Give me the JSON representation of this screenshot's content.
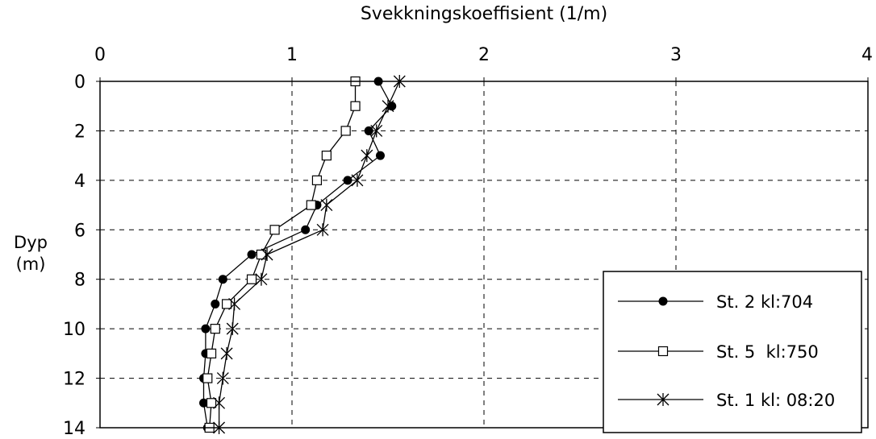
{
  "chart_data": {
    "type": "line",
    "orientation": "depth-profile",
    "title": "Svekkningskoeffisient (1/m)",
    "xlabel": "Svekkningskoeffisient (1/m)",
    "ylabel": "Dyp (m)",
    "ylabel_lines": [
      "Dyp",
      "(m)"
    ],
    "xlim": [
      0,
      4
    ],
    "ylim": [
      0,
      14
    ],
    "y_inverted": true,
    "x_axis_position": "top",
    "x_ticks": [
      "0",
      "1",
      "2",
      "3",
      "4"
    ],
    "y_ticks": [
      "0",
      "2",
      "4",
      "6",
      "8",
      "10",
      "12",
      "14"
    ],
    "grid": true,
    "legend_position": "bottom-right",
    "series": [
      {
        "name": "St. 2 kl:704",
        "marker": "filled-circle",
        "depth": [
          0,
          1,
          2,
          3,
          4,
          5,
          6,
          7,
          8,
          9,
          10,
          11,
          12,
          13,
          14
        ],
        "values": [
          1.45,
          1.52,
          1.4,
          1.46,
          1.29,
          1.13,
          1.07,
          0.79,
          0.64,
          0.6,
          0.55,
          0.55,
          0.54,
          0.54,
          0.56
        ]
      },
      {
        "name": "St. 5  kl:750",
        "marker": "open-square",
        "depth": [
          0,
          1,
          2,
          3,
          4,
          5,
          6,
          7,
          8,
          9,
          10,
          11,
          12,
          13,
          14
        ],
        "values": [
          1.33,
          1.33,
          1.28,
          1.18,
          1.13,
          1.1,
          0.91,
          0.84,
          0.79,
          0.66,
          0.6,
          0.58,
          0.56,
          0.58,
          0.57
        ]
      },
      {
        "name": "St. 1 kl: 08:20",
        "marker": "asterisk",
        "depth": [
          0,
          1,
          2,
          3,
          4,
          5,
          6,
          7,
          8,
          9,
          10,
          11,
          12,
          13,
          14
        ],
        "values": [
          1.56,
          1.5,
          1.44,
          1.39,
          1.34,
          1.18,
          1.16,
          0.87,
          0.84,
          0.7,
          0.69,
          0.66,
          0.64,
          0.62,
          0.62
        ]
      }
    ]
  }
}
